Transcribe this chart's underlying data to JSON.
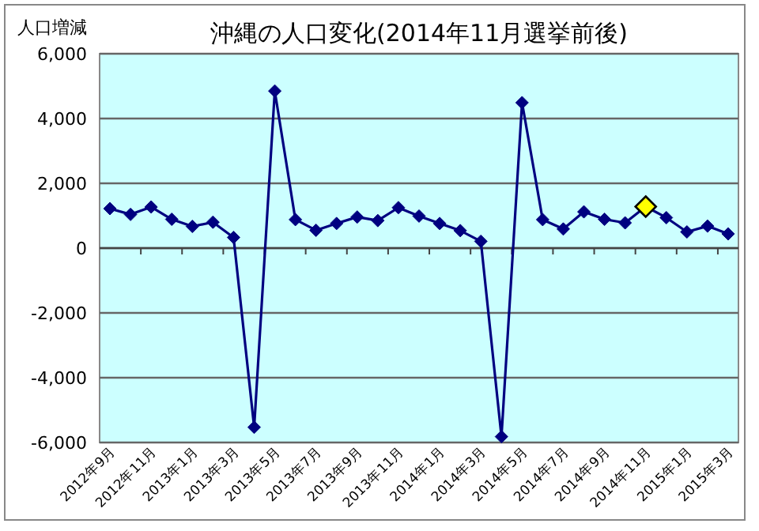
{
  "chart_data": {
    "type": "line",
    "title": "沖縄の人口変化(2014年11月選挙前後)",
    "ylabel": "人口増減",
    "categories": [
      "2012年9月",
      null,
      "2012年11月",
      null,
      "2013年1月",
      null,
      "2013年3月",
      null,
      "2013年5月",
      null,
      "2013年7月",
      null,
      "2013年9月",
      null,
      "2013年11月",
      null,
      "2014年1月",
      null,
      "2014年3月",
      null,
      "2014年5月",
      null,
      "2014年7月",
      null,
      "2014年9月",
      null,
      "2014年11月",
      null,
      "2015年1月",
      null,
      "2015年3月"
    ],
    "series": [
      {
        "color": "#000080",
        "colors": [
          "#000080",
          "#000080",
          "#000080",
          "#000080",
          "#000080",
          "#000080",
          "#000080",
          "#000080",
          "#000080",
          "#000080",
          "#000080",
          "#000080",
          "#000080",
          "#000080",
          "#000080",
          "#000080",
          "#000080",
          "#000080",
          "#000080",
          "#000080",
          "#000080",
          "#000080",
          "#000080",
          "#000080",
          "#000080",
          "#000080",
          "#ffff00",
          "#000080",
          "#000080",
          "#000080",
          "#000080"
        ],
        "values": [
          1220,
          1040,
          1270,
          890,
          670,
          800,
          330,
          -5530,
          4850,
          880,
          550,
          760,
          960,
          850,
          1250,
          990,
          760,
          540,
          210,
          -5820,
          4490,
          880,
          590,
          1120,
          890,
          780,
          1280,
          940,
          500,
          680,
          440
        ]
      }
    ],
    "ylim": [
      -6000,
      6000
    ],
    "yticks": [
      {
        "value": -6000,
        "label": "-6,000"
      },
      {
        "value": -4000,
        "label": "-4,000"
      },
      {
        "value": -2000,
        "label": "-2,000"
      },
      {
        "value": 0,
        "label": "0"
      },
      {
        "value": 2000,
        "label": "2,000"
      },
      {
        "value": 4000,
        "label": "4,000"
      },
      {
        "value": 6000,
        "label": "6,000"
      }
    ],
    "grid": "y",
    "marker": "diamond",
    "line_style": "solid"
  }
}
